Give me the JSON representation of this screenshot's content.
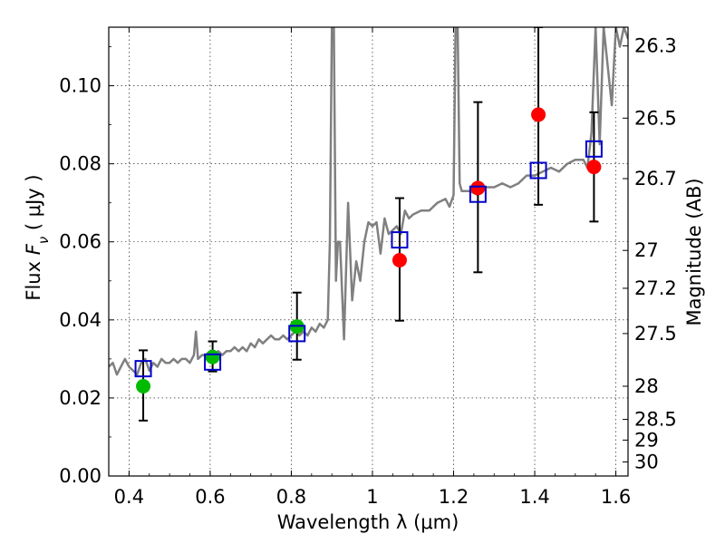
{
  "chart_data": {
    "type": "scatter",
    "xlabel": "Wavelength  λ (μm)",
    "ylabel_prefix": "Flux  ",
    "ylabel_math": "F",
    "ylabel_sub": "ν",
    "ylabel_suffix": "  ( μJy )",
    "right_ylabel": "Magnitude (AB)",
    "xlim": [
      0.35,
      1.63
    ],
    "ylim": [
      0.0,
      0.115
    ],
    "grid": true,
    "x_ticks": [
      0.4,
      0.6,
      0.8,
      1.0,
      1.2,
      1.4,
      1.6
    ],
    "x_tick_labels": [
      "0.4",
      "0.6",
      "0.8",
      "1",
      "1.2",
      "1.4",
      "1.6"
    ],
    "y_ticks": [
      0.0,
      0.02,
      0.04,
      0.06,
      0.08,
      0.1
    ],
    "y_tick_labels": [
      "0.00",
      "0.02",
      "0.04",
      "0.06",
      "0.08",
      "0.10"
    ],
    "mag_ticks": [
      {
        "label": "26.3",
        "flux": 0.1102
      },
      {
        "label": "26.5",
        "flux": 0.0917
      },
      {
        "label": "26.7",
        "flux": 0.0762
      },
      {
        "label": "27",
        "flux": 0.0578
      },
      {
        "label": "27.2",
        "flux": 0.0481
      },
      {
        "label": "27.5",
        "flux": 0.0365
      },
      {
        "label": "28",
        "flux": 0.023
      },
      {
        "label": "28.5",
        "flux": 0.0145
      },
      {
        "label": "29",
        "flux": 0.0092
      },
      {
        "label": "30",
        "flux": 0.0036
      }
    ],
    "colors": {
      "spectrum": "#808080",
      "optical_points": "#00bb00",
      "nir_points": "#ff0000",
      "model_squares": "#0000cc",
      "error_bars": "#000000"
    },
    "series": [
      {
        "kind": "spectrum",
        "x": [
          0.35,
          0.36,
          0.37,
          0.38,
          0.39,
          0.4,
          0.41,
          0.42,
          0.43,
          0.44,
          0.45,
          0.46,
          0.47,
          0.48,
          0.49,
          0.5,
          0.51,
          0.52,
          0.53,
          0.54,
          0.55,
          0.56,
          0.565,
          0.57,
          0.58,
          0.59,
          0.6,
          0.61,
          0.62,
          0.63,
          0.64,
          0.65,
          0.66,
          0.67,
          0.68,
          0.69,
          0.7,
          0.71,
          0.72,
          0.73,
          0.74,
          0.75,
          0.76,
          0.77,
          0.78,
          0.79,
          0.8,
          0.81,
          0.82,
          0.83,
          0.84,
          0.85,
          0.86,
          0.87,
          0.88,
          0.89,
          0.895,
          0.9,
          0.905,
          0.91,
          0.915,
          0.92,
          0.93,
          0.94,
          0.95,
          0.96,
          0.97,
          0.98,
          0.99,
          1.0,
          1.01,
          1.02,
          1.03,
          1.04,
          1.05,
          1.06,
          1.07,
          1.08,
          1.09,
          1.1,
          1.12,
          1.14,
          1.16,
          1.18,
          1.19,
          1.2,
          1.205,
          1.21,
          1.215,
          1.22,
          1.24,
          1.26,
          1.28,
          1.3,
          1.32,
          1.34,
          1.36,
          1.38,
          1.4,
          1.42,
          1.44,
          1.46,
          1.48,
          1.5,
          1.52,
          1.53,
          1.54,
          1.55,
          1.56,
          1.57,
          1.58,
          1.59,
          1.6,
          1.61,
          1.62,
          1.63
        ],
        "y": [
          0.028,
          0.029,
          0.026,
          0.028,
          0.03,
          0.028,
          0.027,
          0.026,
          0.029,
          0.03,
          0.027,
          0.029,
          0.028,
          0.03,
          0.029,
          0.029,
          0.03,
          0.029,
          0.03,
          0.03,
          0.029,
          0.031,
          0.037,
          0.03,
          0.031,
          0.031,
          0.03,
          0.031,
          0.032,
          0.031,
          0.032,
          0.032,
          0.033,
          0.032,
          0.033,
          0.032,
          0.034,
          0.033,
          0.035,
          0.034,
          0.035,
          0.036,
          0.035,
          0.035,
          0.036,
          0.035,
          0.036,
          0.037,
          0.036,
          0.037,
          0.036,
          0.038,
          0.037,
          0.039,
          0.038,
          0.04,
          0.06,
          0.115,
          0.115,
          0.05,
          0.06,
          0.06,
          0.035,
          0.07,
          0.045,
          0.055,
          0.05,
          0.06,
          0.065,
          0.064,
          0.065,
          0.057,
          0.066,
          0.062,
          0.063,
          0.064,
          0.062,
          0.068,
          0.066,
          0.067,
          0.068,
          0.068,
          0.07,
          0.071,
          0.069,
          0.072,
          0.115,
          0.115,
          0.075,
          0.073,
          0.073,
          0.072,
          0.074,
          0.074,
          0.075,
          0.074,
          0.075,
          0.077,
          0.077,
          0.078,
          0.079,
          0.078,
          0.08,
          0.081,
          0.081,
          0.079,
          0.088,
          0.115,
          0.085,
          0.115,
          0.105,
          0.095,
          0.115,
          0.11,
          0.115,
          0.112
        ]
      },
      {
        "kind": "optical_points",
        "x": [
          0.435,
          0.606,
          0.814
        ],
        "y": [
          0.023,
          0.0305,
          0.0383
        ]
      },
      {
        "kind": "nir_points",
        "x": [
          1.067,
          1.26,
          1.409,
          1.546
        ],
        "y": [
          0.0553,
          0.0738,
          0.0926,
          0.0792
        ]
      },
      {
        "kind": "model_squares",
        "x": [
          0.435,
          0.606,
          0.814,
          1.067,
          1.26,
          1.409,
          1.546
        ],
        "y": [
          0.0275,
          0.0292,
          0.0365,
          0.0605,
          0.0722,
          0.0783,
          0.0838
        ]
      },
      {
        "kind": "error_bars",
        "x": [
          0.435,
          0.606,
          0.814,
          1.067,
          1.26,
          1.409,
          1.546
        ],
        "low": [
          0.0142,
          0.0268,
          0.0298,
          0.0398,
          0.0522,
          0.0695,
          0.0652
        ],
        "high": [
          0.0322,
          0.0345,
          0.047,
          0.0712,
          0.0958,
          0.115,
          0.0932
        ]
      }
    ]
  }
}
